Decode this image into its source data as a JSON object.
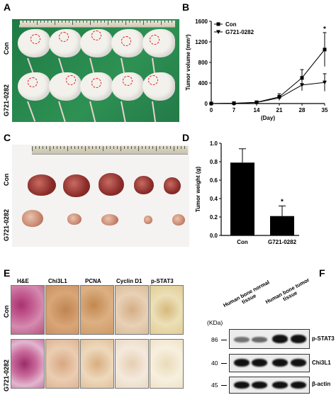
{
  "panels": {
    "A": {
      "letter": "A",
      "groups": [
        "Con",
        "G721-0282"
      ]
    },
    "B": {
      "letter": "B"
    },
    "C": {
      "letter": "C",
      "groups": [
        "Con",
        "G721-0282"
      ]
    },
    "D": {
      "letter": "D"
    },
    "E": {
      "letter": "E",
      "stains": [
        "H&E",
        "Chi3L1",
        "PCNA",
        "Cyclin D1",
        "p-STAT3"
      ],
      "groups": [
        "Con",
        "G721-0282"
      ]
    },
    "F": {
      "letter": "F",
      "kda_title": "(KDa)",
      "markers": [
        "86",
        "40",
        "45"
      ],
      "columns": [
        "Human bone normal tissue",
        "Human bone tumor tissue"
      ],
      "blots": [
        "p-STAT3",
        "Chi3L1",
        "β-actin"
      ]
    }
  },
  "chart_data": [
    {
      "type": "line",
      "panel": "B",
      "xlabel": "(Day)",
      "ylabel": "Tumor volume (mm³)",
      "xlim": [
        0,
        35
      ],
      "ylim": [
        0,
        1600
      ],
      "xticks": [
        "0",
        "7",
        "14",
        "21",
        "28",
        "35"
      ],
      "yticks": [
        "0",
        "400",
        "800",
        "1200",
        "1600"
      ],
      "x": [
        0,
        7,
        14,
        21,
        28,
        35
      ],
      "series": [
        {
          "name": "Con",
          "marker": "square",
          "values": [
            0,
            5,
            25,
            130,
            500,
            1050
          ],
          "errors": [
            0,
            5,
            15,
            60,
            160,
            330
          ]
        },
        {
          "name": "G721-0282",
          "marker": "triangle-down",
          "values": [
            0,
            5,
            20,
            110,
            360,
            410
          ],
          "errors": [
            0,
            5,
            10,
            50,
            110,
            170
          ]
        }
      ],
      "annotations": [
        "*"
      ],
      "legend": "top-left"
    },
    {
      "type": "bar",
      "panel": "D",
      "ylabel": "Tumor weight (g)",
      "categories": [
        "Con",
        "G721-0282"
      ],
      "values": [
        0.79,
        0.21
      ],
      "errors": [
        0.15,
        0.11
      ],
      "ylim": [
        0,
        1.0
      ],
      "yticks": [
        "0.0",
        "0.2",
        "0.4",
        "0.6",
        "0.8",
        "1.0"
      ],
      "annotations": [
        "*"
      ]
    }
  ]
}
